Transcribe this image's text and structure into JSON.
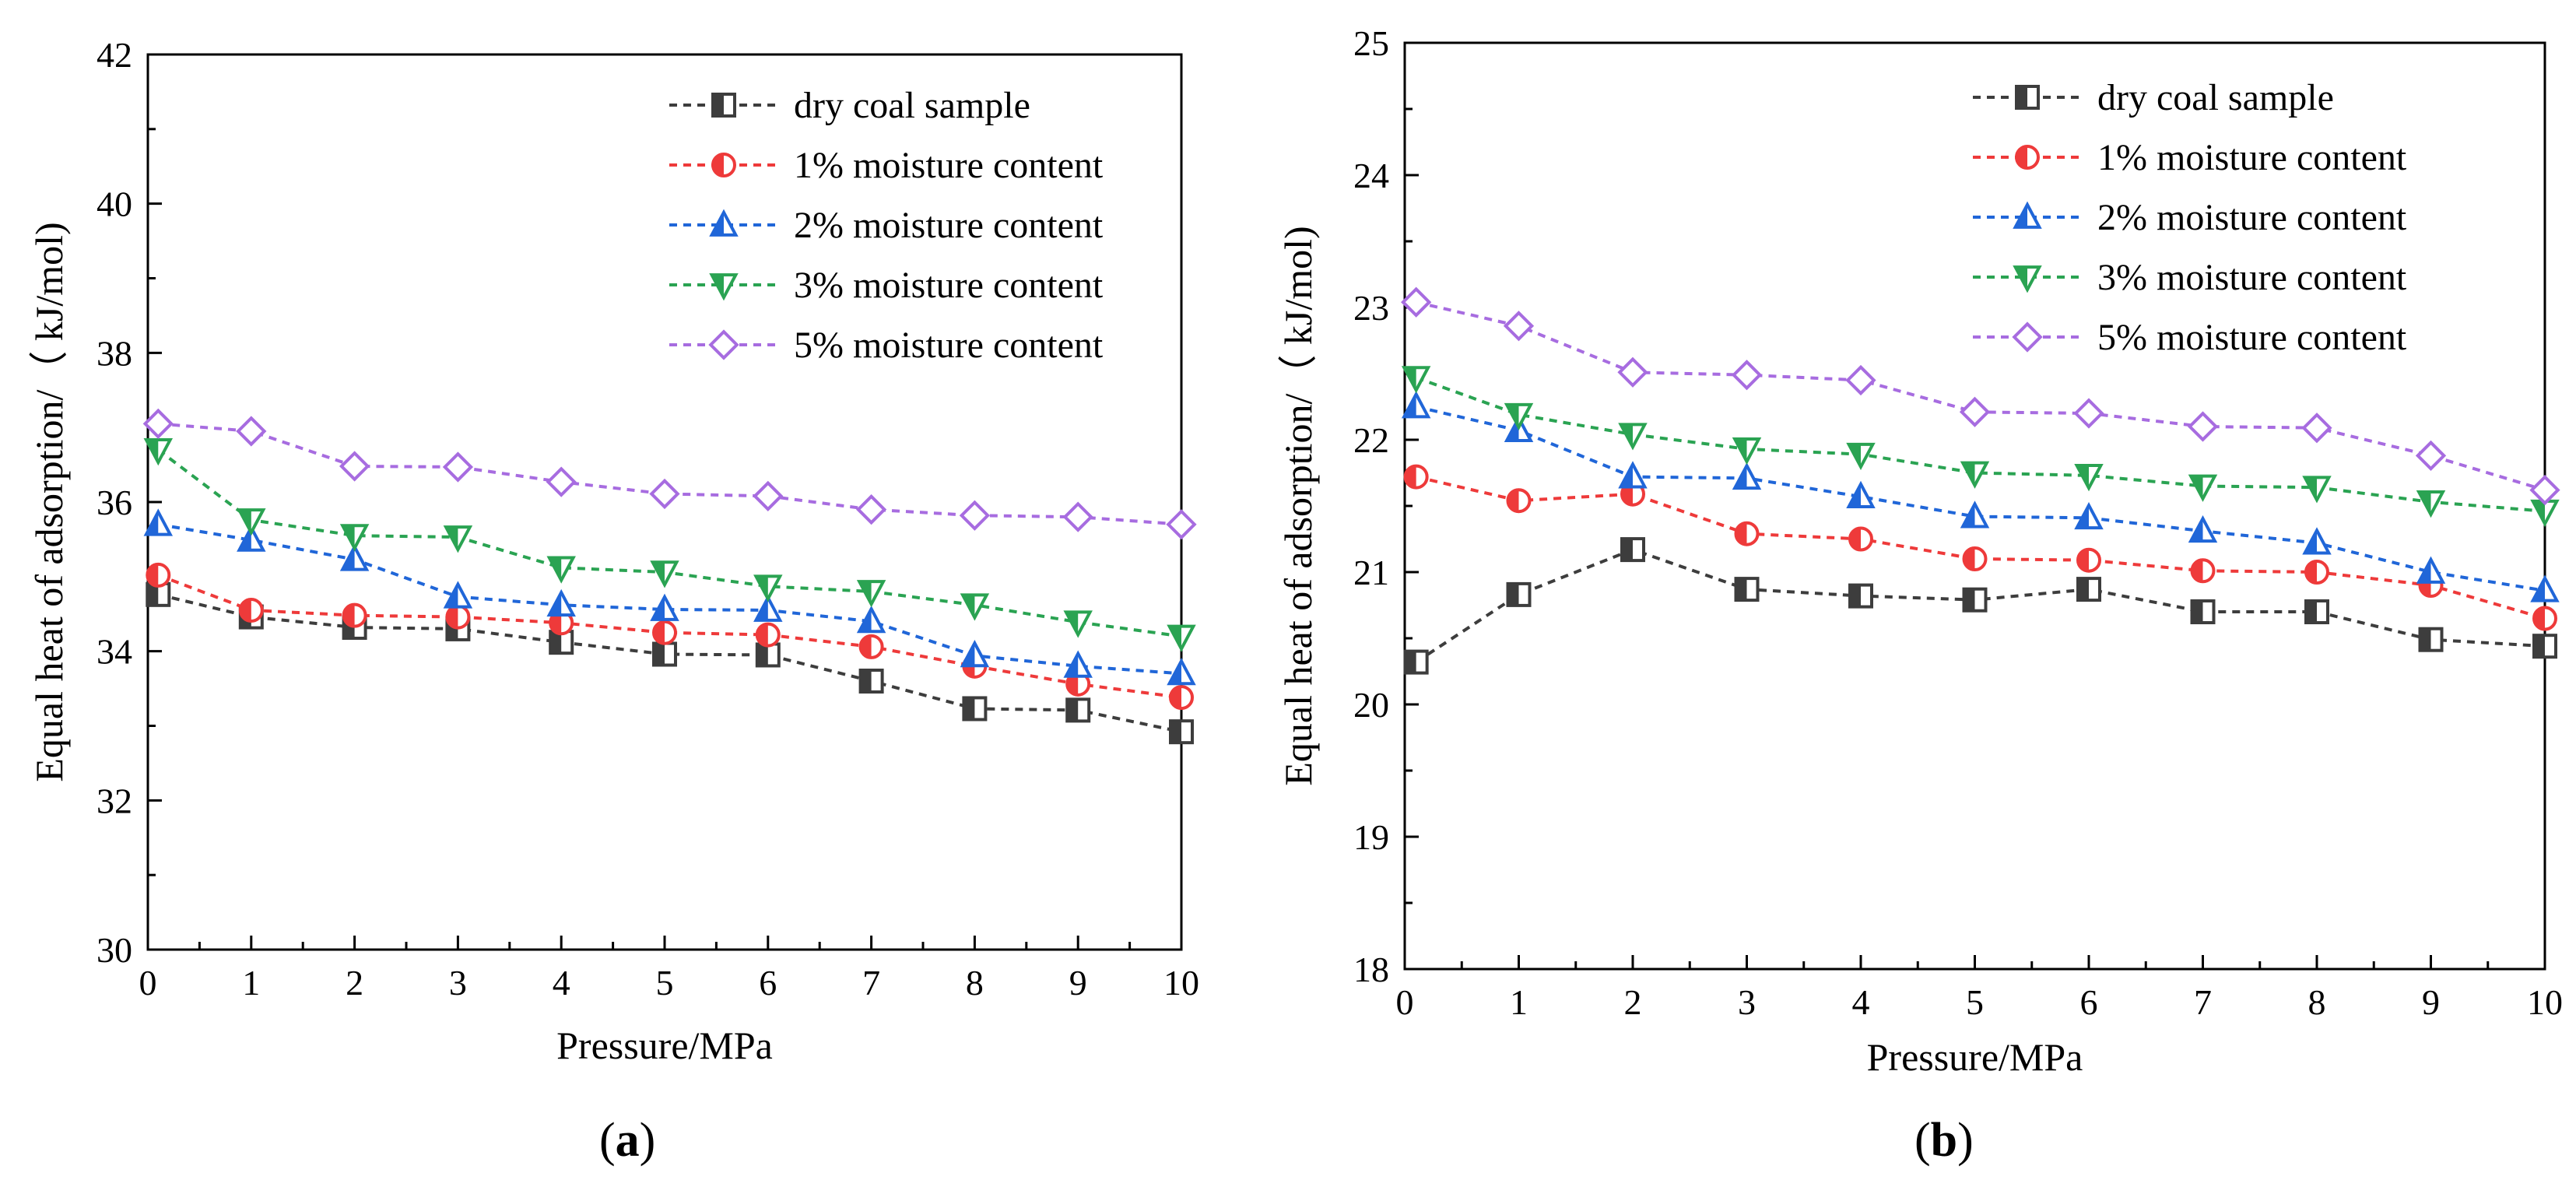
{
  "colors": {
    "dry": "#3d3d3d",
    "m1": "#ee3a3a",
    "m2": "#2066d8",
    "m3": "#2aa352",
    "m5": "#a76ce0"
  },
  "chart_data": [
    {
      "panel_label": "a",
      "type": "line",
      "xlabel": "Pressure/MPa",
      "ylabel": "Equal heat of adsorption/（ kJ/mol)",
      "xlim": [
        0,
        10
      ],
      "ylim": [
        30,
        42
      ],
      "xticks": [
        0,
        1,
        2,
        3,
        4,
        5,
        6,
        7,
        8,
        9,
        10
      ],
      "yticks": [
        30,
        32,
        34,
        36,
        38,
        40,
        42
      ],
      "x": [
        0.1,
        1,
        2,
        3,
        4,
        5,
        6,
        7,
        8,
        9,
        10
      ],
      "series": [
        {
          "name": "dry coal sample",
          "marker": "square",
          "color": "#3d3d3d",
          "values": [
            34.76,
            34.46,
            34.32,
            34.3,
            34.12,
            33.96,
            33.95,
            33.6,
            33.23,
            33.21,
            32.92
          ]
        },
        {
          "name": "1% moisture content",
          "marker": "circle",
          "color": "#ee3a3a",
          "values": [
            35.02,
            34.55,
            34.48,
            34.46,
            34.38,
            34.25,
            34.22,
            34.06,
            33.8,
            33.56,
            33.38
          ]
        },
        {
          "name": "2% moisture content",
          "marker": "triangle-up",
          "color": "#2066d8",
          "values": [
            35.7,
            35.49,
            35.23,
            34.73,
            34.62,
            34.56,
            34.55,
            34.4,
            33.94,
            33.8,
            33.7
          ]
        },
        {
          "name": "3% moisture content",
          "marker": "triangle-down",
          "color": "#2aa352",
          "values": [
            36.7,
            35.76,
            35.55,
            35.53,
            35.12,
            35.06,
            34.87,
            34.8,
            34.62,
            34.39,
            34.2
          ]
        },
        {
          "name": "5% moisture content",
          "marker": "diamond",
          "color": "#a76ce0",
          "values": [
            37.05,
            36.95,
            36.48,
            36.47,
            36.27,
            36.11,
            36.08,
            35.9,
            35.82,
            35.8,
            35.7
          ]
        }
      ]
    },
    {
      "panel_label": "b",
      "type": "line",
      "xlabel": "Pressure/MPa",
      "ylabel": "Equal heat of adsorption/（ kJ/mol)",
      "xlim": [
        0,
        10
      ],
      "ylim": [
        18,
        25
      ],
      "xticks": [
        0,
        1,
        2,
        3,
        4,
        5,
        6,
        7,
        8,
        9,
        10
      ],
      "yticks": [
        18,
        19,
        20,
        21,
        22,
        23,
        24,
        25
      ],
      "x": [
        0.1,
        1,
        2,
        3,
        4,
        5,
        6,
        7,
        8,
        9,
        10
      ],
      "series": [
        {
          "name": "dry coal sample",
          "marker": "square",
          "color": "#3d3d3d",
          "values": [
            20.32,
            20.83,
            21.17,
            20.87,
            20.82,
            20.79,
            20.87,
            20.7,
            20.7,
            20.49,
            20.44
          ]
        },
        {
          "name": "1% moisture content",
          "marker": "circle",
          "color": "#ee3a3a",
          "values": [
            21.72,
            21.54,
            21.59,
            21.29,
            21.25,
            21.1,
            21.09,
            21.01,
            21.0,
            20.9,
            20.65
          ]
        },
        {
          "name": "2% moisture content",
          "marker": "triangle-up",
          "color": "#2066d8",
          "values": [
            22.25,
            22.07,
            21.72,
            21.71,
            21.57,
            21.42,
            21.41,
            21.31,
            21.22,
            21.0,
            20.86
          ]
        },
        {
          "name": "3% moisture content",
          "marker": "triangle-down",
          "color": "#2aa352",
          "values": [
            22.47,
            22.19,
            22.04,
            21.93,
            21.89,
            21.75,
            21.73,
            21.65,
            21.64,
            21.53,
            21.46
          ]
        },
        {
          "name": "5% moisture content",
          "marker": "diamond",
          "color": "#a76ce0",
          "values": [
            23.04,
            22.86,
            22.51,
            22.49,
            22.45,
            22.21,
            22.2,
            22.1,
            22.09,
            21.88,
            21.62
          ]
        }
      ]
    }
  ]
}
